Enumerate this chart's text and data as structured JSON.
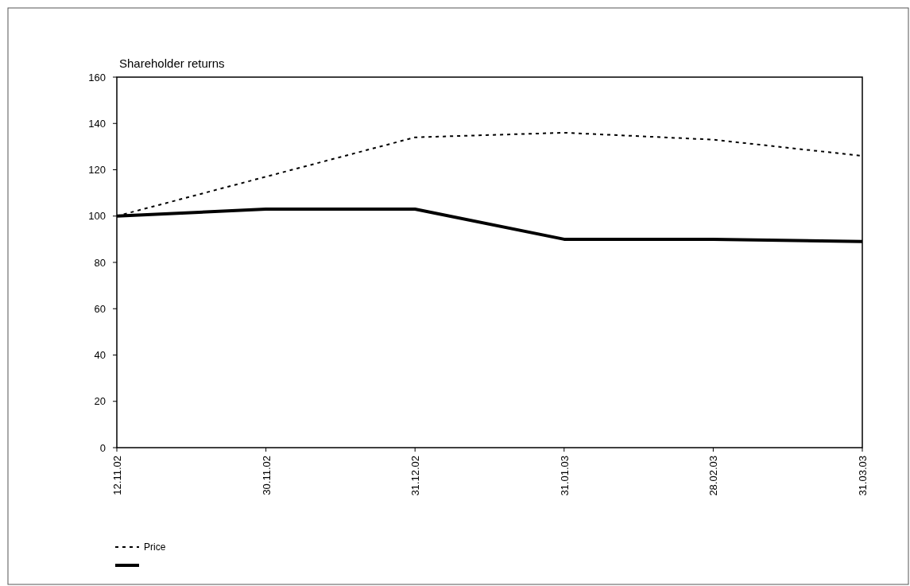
{
  "chart_data": {
    "type": "line",
    "title": "Shareholder returns",
    "categories": [
      "12.11.02",
      "30.11.02",
      "31.12.02",
      "31.01.03",
      "28.02.03",
      "31.03.03"
    ],
    "series": [
      {
        "name": "Price",
        "color": "#000000",
        "line_style": "dotted",
        "values": [
          100,
          117,
          134,
          136,
          133,
          126
        ]
      },
      {
        "color": "#000000",
        "line_style": "solid",
        "values": [
          100,
          103,
          103,
          90,
          90,
          89
        ]
      }
    ],
    "ylim": [
      0,
      160
    ],
    "yticks": [
      0,
      20,
      40,
      60,
      80,
      100,
      120,
      140,
      160
    ],
    "grid": false,
    "legend": "bottom left"
  }
}
